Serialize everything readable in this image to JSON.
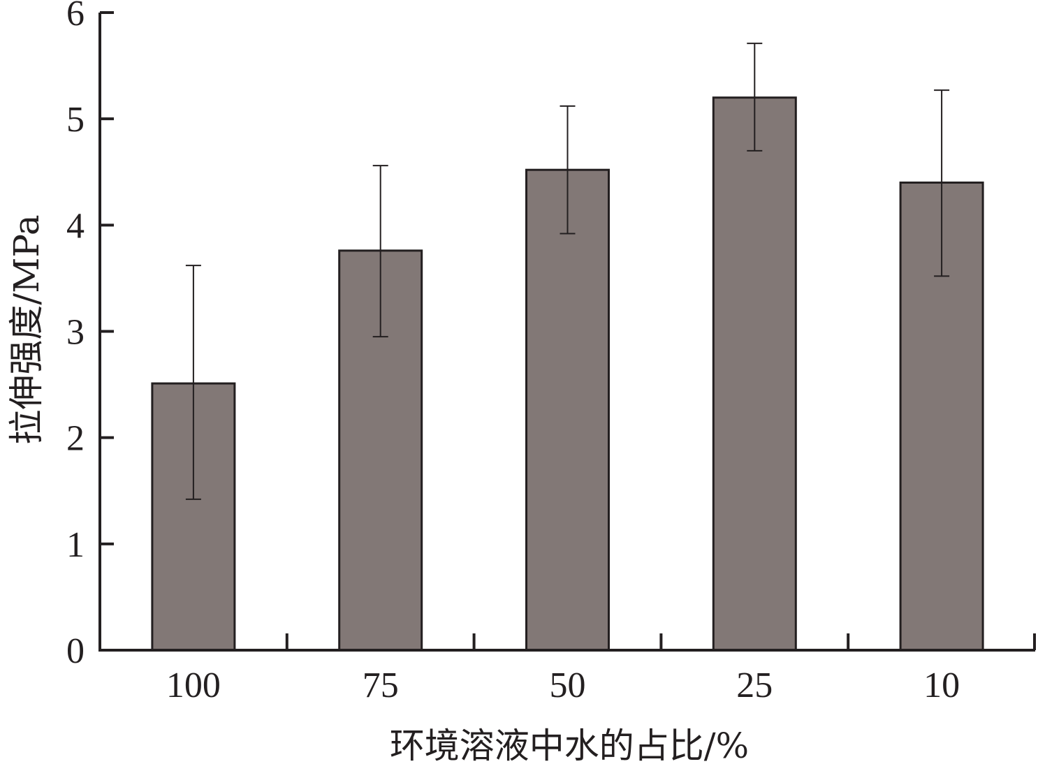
{
  "chart_data": {
    "type": "bar",
    "categories": [
      "100",
      "75",
      "50",
      "25",
      "10"
    ],
    "values": [
      2.51,
      3.76,
      4.52,
      5.2,
      4.4
    ],
    "error_upper": [
      3.62,
      4.56,
      5.12,
      5.71,
      5.27
    ],
    "error_lower": [
      1.42,
      2.95,
      3.92,
      4.7,
      3.52
    ],
    "xlabel": "环境溶液中水的占比/%",
    "ylabel": "拉伸强度/MPa",
    "ylim": [
      0,
      6
    ],
    "yticks": [
      "0",
      "1",
      "2",
      "3",
      "4",
      "5",
      "6"
    ],
    "grid": false,
    "colors": {
      "bar": "#827876",
      "bar_outline": "#231f20",
      "axis": "#231f20",
      "error_bar": "#231f20"
    }
  }
}
